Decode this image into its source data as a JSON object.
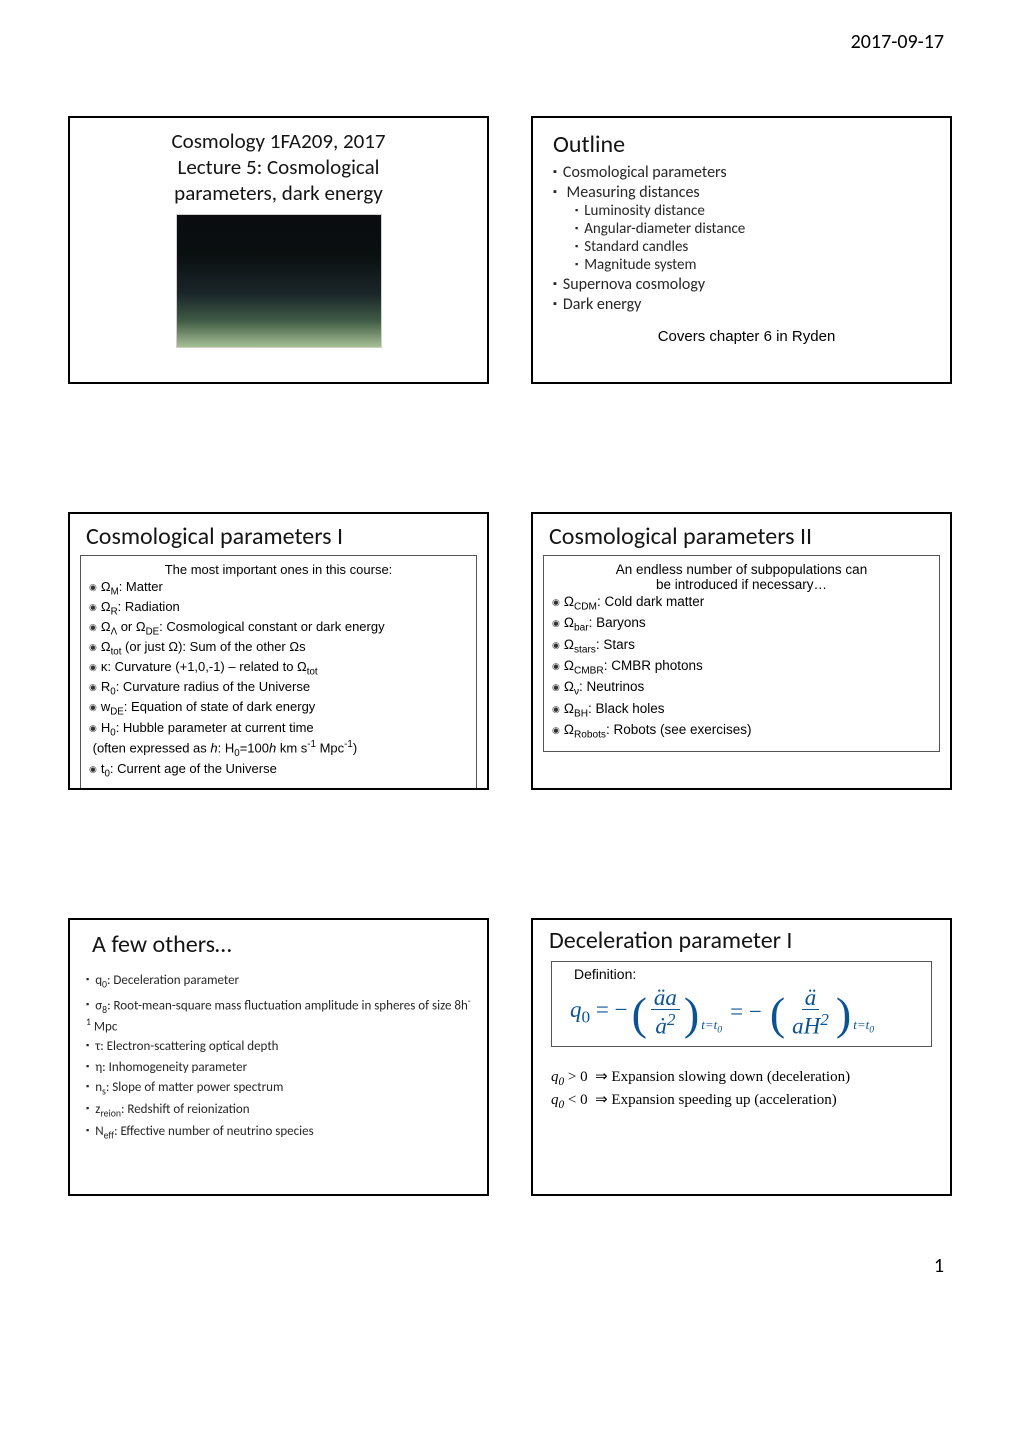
{
  "page": {
    "date": "2017-09-17",
    "number": "1"
  },
  "slide1": {
    "line1": "Cosmology 1FA209, 2017",
    "line2": "Lecture 5: Cosmological",
    "line3": "parameters, dark energy"
  },
  "slide2": {
    "title": "Outline",
    "items": [
      "Cosmological  parameters",
      "Measuring distances",
      "Supernova cosmology",
      "Dark energy"
    ],
    "subitems": [
      "Luminosity distance",
      "Angular-diameter distance",
      "Standard candles",
      "Magnitude system"
    ],
    "covers": "Covers chapter 6 in Ryden"
  },
  "slide3": {
    "title": "Cosmological parameters I",
    "subhead": "The most important ones in this course:",
    "items_html": [
      "Ω<span class='sub'>M</span>: Matter",
      "Ω<span class='sub'>R</span>: Radiation",
      "Ω<span class='sub'>Λ</span> or Ω<span class='sub'>DE</span>: Cosmological constant or dark energy",
      "Ω<span class='sub'>tot</span> (or just Ω): Sum of the other Ωs",
      "κ: Curvature (+1,0,-1) – related to Ω<span class='sub'>tot</span>",
      "R<span class='sub'>0</span>: Curvature radius of the Universe",
      "w<span class='sub'>DE</span>: Equation of state of dark energy",
      "H<span class='sub'>0</span>: Hubble parameter at current time<br>&nbsp;(often expressed as <i>h</i>: H<span class='sub'>0</span>=100<i>h</i> km s<span class='sup'>-1</span> Mpc<span class='sup'>-1</span>)",
      "t<span class='sub'>0</span>: Current age of the Universe"
    ]
  },
  "slide4": {
    "title": "Cosmological parameters II",
    "subhead_l1": "An endless number of subpopulations can",
    "subhead_l2": "be introduced if necessary…",
    "items_html": [
      "Ω<span class='sub'>CDM</span>: Cold dark matter",
      "Ω<span class='sub'>bar</span>: Baryons",
      "Ω<span class='sub'>stars</span>: Stars",
      "Ω<span class='sub'>CMBR</span>: CMBR photons",
      "Ω<span class='sub'>ν</span>: Neutrinos",
      "Ω<span class='sub'>BH</span>: Black holes",
      "Ω<span class='sub'>Robots</span>: Robots (see exercises)"
    ]
  },
  "slide5": {
    "title": "A few others…",
    "items_html": [
      "q<span class='sub'>0</span>: Deceleration parameter",
      "σ<span class='sub'>8</span>: Root-mean-square mass fluctuation amplitude in spheres of size 8h<span class='sup'>-1</span> Mpc",
      "τ: Electron-scattering optical depth",
      "η: Inhomogeneity parameter",
      "n<span class='sub'>s</span>: Slope of matter power spectrum",
      "z<span class='sub'>reion</span>: Redshift of reionization",
      "N<span class='sub'>eff</span>: Effective number of neutrino species"
    ]
  },
  "slide6": {
    "title": "Deceleration parameter I",
    "def_label": "Definition:",
    "formula": {
      "lhs": "q",
      "lhs_sub": "0",
      "frac1_num": "äa",
      "frac1_den": "ȧ",
      "frac1_den_sup": "2",
      "frac2_num": "ä",
      "frac2_den": "aH",
      "frac2_den_sup": "2",
      "eval_at": "t=t",
      "eval_at_sub": "0",
      "color": "#0b5394"
    },
    "imp1": "q₀ > 0  ⇒ Expansion slowing down (deceleration)",
    "imp2": "q₀ < 0  ⇒ Expansion speeding up (acceleration)"
  },
  "colors": {
    "border": "#000000",
    "inner_border": "#555555",
    "text": "#000000",
    "muted": "#262626",
    "formula": "#0b5394"
  }
}
